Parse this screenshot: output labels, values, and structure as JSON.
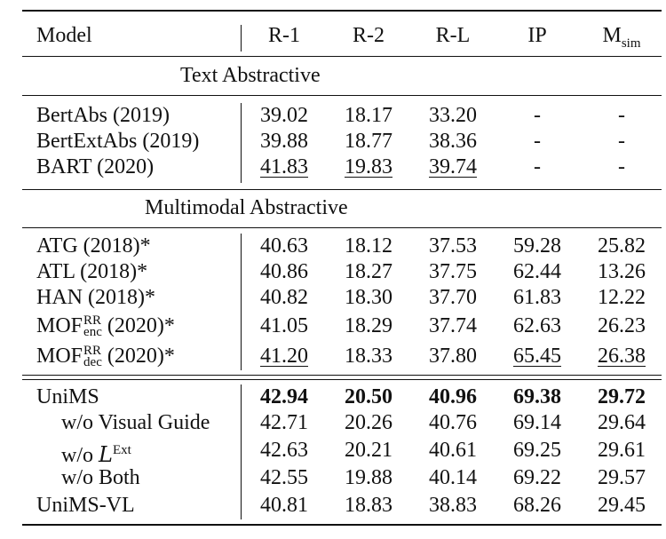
{
  "headers": {
    "model": "Model",
    "r1": "R-1",
    "r2": "R-2",
    "rl": "R-L",
    "ip": "IP",
    "msim_main": "M",
    "msim_sub": "sim"
  },
  "sections": {
    "text": "Text Abstractive",
    "mm": "Multimodal Abstractive"
  },
  "rows": [
    {
      "model": "BertAbs (2019)",
      "r1": "39.02",
      "r2": "18.17",
      "rl": "33.20",
      "ip": "-",
      "msim": "-"
    },
    {
      "model": "BertExtAbs (2019)",
      "r1": "39.88",
      "r2": "18.77",
      "rl": "38.36",
      "ip": "-",
      "msim": "-"
    },
    {
      "model": "BART (2020)",
      "r1": "41.83",
      "r2": "19.83",
      "rl": "39.74",
      "ip": "-",
      "msim": "-"
    },
    {
      "model": "ATG (2018)*",
      "r1": "40.63",
      "r2": "18.12",
      "rl": "37.53",
      "ip": "59.28",
      "msim": "25.82"
    },
    {
      "model": "ATL (2018)*",
      "r1": "40.86",
      "r2": "18.27",
      "rl": "37.75",
      "ip": "62.44",
      "msim": "13.26"
    },
    {
      "model": "HAN (2018)*",
      "r1": "40.82",
      "r2": "18.30",
      "rl": "37.70",
      "ip": "61.83",
      "msim": "12.22"
    },
    {
      "model_main": "MOF",
      "model_sup": "RR",
      "model_sub": "enc",
      "model_tail": " (2020)*",
      "r1": "41.05",
      "r2": "18.29",
      "rl": "37.74",
      "ip": "62.63",
      "msim": "26.23"
    },
    {
      "model_main": "MOF",
      "model_sup": "RR",
      "model_sub": "dec",
      "model_tail": " (2020)*",
      "r1": "41.20",
      "r2": "18.33",
      "rl": "37.80",
      "ip": "65.45",
      "msim": "26.38"
    },
    {
      "model": "UniMS",
      "r1": "42.94",
      "r2": "20.50",
      "rl": "40.96",
      "ip": "69.38",
      "msim": "29.72"
    },
    {
      "model": "w/o Visual Guide",
      "r1": "42.71",
      "r2": "20.26",
      "rl": "40.76",
      "ip": "69.14",
      "msim": "29.64"
    },
    {
      "model_main": "w/o ",
      "model_script": "L",
      "model_sup": "Ext",
      "r1": "42.63",
      "r2": "20.21",
      "rl": "40.61",
      "ip": "69.25",
      "msim": "29.61"
    },
    {
      "model": "w/o Both",
      "r1": "42.55",
      "r2": "19.88",
      "rl": "40.14",
      "ip": "69.22",
      "msim": "29.57"
    },
    {
      "model": "UniMS-VL",
      "r1": "40.81",
      "r2": "18.83",
      "rl": "38.83",
      "ip": "68.26",
      "msim": "29.45"
    }
  ]
}
